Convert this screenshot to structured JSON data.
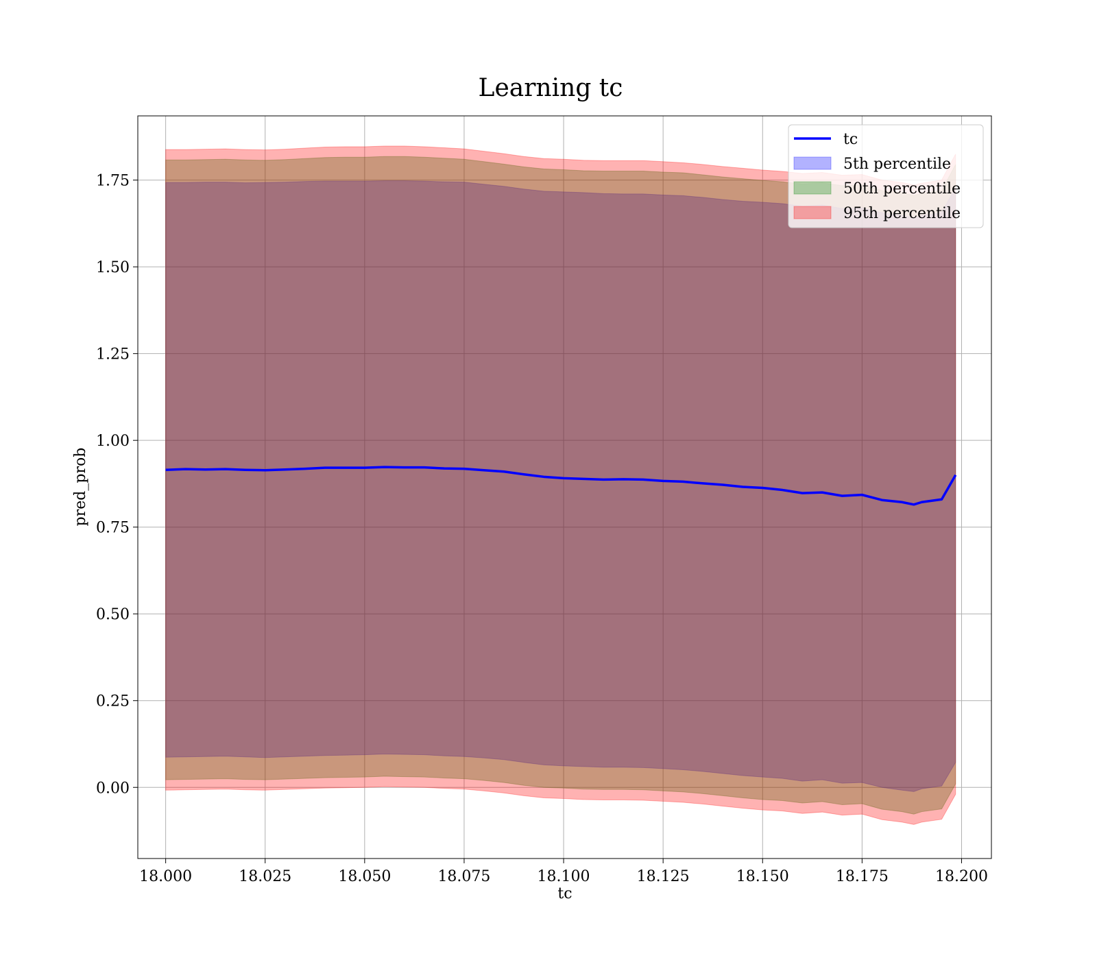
{
  "chart_data": {
    "type": "area",
    "title": "Learning tc",
    "xlabel": "tc",
    "ylabel": "pred_prob",
    "xlim": [
      17.993,
      18.2075
    ],
    "ylim": [
      -0.205,
      1.935
    ],
    "xticks": [
      "18.000",
      "18.025",
      "18.050",
      "18.075",
      "18.100",
      "18.125",
      "18.150",
      "18.175",
      "18.200"
    ],
    "yticks": [
      "0.00",
      "0.25",
      "0.50",
      "0.75",
      "1.00",
      "1.25",
      "1.50",
      "1.75"
    ],
    "grid": true,
    "legend_position": "top-right",
    "legend": [
      {
        "label": "tc",
        "kind": "line",
        "color": "#0000ff"
      },
      {
        "label": "5th percentile",
        "kind": "patch",
        "color": "#0000ff"
      },
      {
        "label": "50th percentile",
        "kind": "patch",
        "color": "#008000"
      },
      {
        "label": "95th percentile",
        "kind": "patch",
        "color": "#ff0000"
      }
    ],
    "x": [
      18.0,
      18.005,
      18.01,
      18.015,
      18.02,
      18.025,
      18.03,
      18.035,
      18.04,
      18.045,
      18.05,
      18.055,
      18.06,
      18.065,
      18.07,
      18.075,
      18.08,
      18.085,
      18.09,
      18.095,
      18.1,
      18.105,
      18.11,
      18.115,
      18.12,
      18.125,
      18.13,
      18.135,
      18.14,
      18.145,
      18.15,
      18.155,
      18.16,
      18.165,
      18.17,
      18.175,
      18.18,
      18.185,
      18.188,
      18.19,
      18.195,
      18.1985
    ],
    "series": [
      {
        "name": "tc",
        "color": "#0000ff",
        "values": [
          0.915,
          0.917,
          0.916,
          0.917,
          0.915,
          0.914,
          0.916,
          0.918,
          0.921,
          0.921,
          0.921,
          0.923,
          0.922,
          0.922,
          0.919,
          0.918,
          0.914,
          0.91,
          0.902,
          0.895,
          0.891,
          0.889,
          0.887,
          0.888,
          0.887,
          0.883,
          0.881,
          0.876,
          0.872,
          0.866,
          0.863,
          0.857,
          0.848,
          0.85,
          0.84,
          0.843,
          0.828,
          0.822,
          0.815,
          0.822,
          0.83,
          0.9
        ]
      },
      {
        "name": "5th percentile",
        "color": "#0000ff",
        "upper": [
          1.743,
          1.743,
          1.744,
          1.744,
          1.742,
          1.743,
          1.744,
          1.746,
          1.747,
          1.747,
          1.747,
          1.748,
          1.748,
          1.747,
          1.745,
          1.744,
          1.738,
          1.732,
          1.724,
          1.718,
          1.716,
          1.714,
          1.711,
          1.71,
          1.71,
          1.707,
          1.705,
          1.7,
          1.694,
          1.689,
          1.686,
          1.682,
          1.675,
          1.678,
          1.668,
          1.67,
          1.656,
          1.648,
          1.642,
          1.648,
          1.656,
          1.73
        ],
        "lower": [
          0.087,
          0.088,
          0.089,
          0.09,
          0.088,
          0.086,
          0.088,
          0.09,
          0.092,
          0.093,
          0.094,
          0.096,
          0.095,
          0.094,
          0.091,
          0.089,
          0.085,
          0.08,
          0.072,
          0.065,
          0.062,
          0.06,
          0.058,
          0.058,
          0.057,
          0.054,
          0.051,
          0.046,
          0.04,
          0.034,
          0.03,
          0.026,
          0.018,
          0.022,
          0.012,
          0.014,
          0.0,
          -0.008,
          -0.012,
          -0.004,
          0.004,
          0.072
        ]
      },
      {
        "name": "50th percentile",
        "color": "#008000",
        "upper": [
          1.808,
          1.808,
          1.809,
          1.81,
          1.808,
          1.807,
          1.809,
          1.812,
          1.815,
          1.816,
          1.816,
          1.818,
          1.818,
          1.816,
          1.813,
          1.81,
          1.803,
          1.796,
          1.788,
          1.782,
          1.78,
          1.777,
          1.776,
          1.776,
          1.776,
          1.773,
          1.771,
          1.765,
          1.759,
          1.754,
          1.749,
          1.745,
          1.739,
          1.742,
          1.734,
          1.736,
          1.72,
          1.713,
          1.706,
          1.711,
          1.72,
          1.795
        ],
        "lower": [
          0.022,
          0.023,
          0.024,
          0.025,
          0.023,
          0.022,
          0.024,
          0.026,
          0.028,
          0.029,
          0.03,
          0.032,
          0.031,
          0.03,
          0.027,
          0.025,
          0.02,
          0.014,
          0.006,
          0.0,
          -0.002,
          -0.005,
          -0.006,
          -0.006,
          -0.007,
          -0.01,
          -0.013,
          -0.018,
          -0.024,
          -0.03,
          -0.035,
          -0.038,
          -0.045,
          -0.041,
          -0.05,
          -0.047,
          -0.063,
          -0.07,
          -0.077,
          -0.07,
          -0.062,
          0.01
        ]
      },
      {
        "name": "95th percentile",
        "color": "#ff0000",
        "upper": [
          1.838,
          1.838,
          1.839,
          1.84,
          1.838,
          1.837,
          1.839,
          1.842,
          1.845,
          1.846,
          1.846,
          1.848,
          1.848,
          1.846,
          1.843,
          1.84,
          1.833,
          1.826,
          1.818,
          1.812,
          1.81,
          1.807,
          1.806,
          1.806,
          1.806,
          1.803,
          1.8,
          1.795,
          1.789,
          1.784,
          1.779,
          1.775,
          1.769,
          1.772,
          1.764,
          1.766,
          1.75,
          1.743,
          1.736,
          1.741,
          1.75,
          1.825
        ],
        "lower": [
          -0.008,
          -0.007,
          -0.006,
          -0.005,
          -0.007,
          -0.008,
          -0.006,
          -0.004,
          -0.002,
          -0.001,
          0.0,
          0.002,
          0.001,
          0.0,
          -0.003,
          -0.005,
          -0.01,
          -0.016,
          -0.024,
          -0.03,
          -0.032,
          -0.035,
          -0.036,
          -0.036,
          -0.037,
          -0.04,
          -0.043,
          -0.048,
          -0.054,
          -0.06,
          -0.065,
          -0.068,
          -0.075,
          -0.071,
          -0.08,
          -0.077,
          -0.093,
          -0.1,
          -0.107,
          -0.1,
          -0.092,
          -0.02
        ]
      }
    ]
  }
}
